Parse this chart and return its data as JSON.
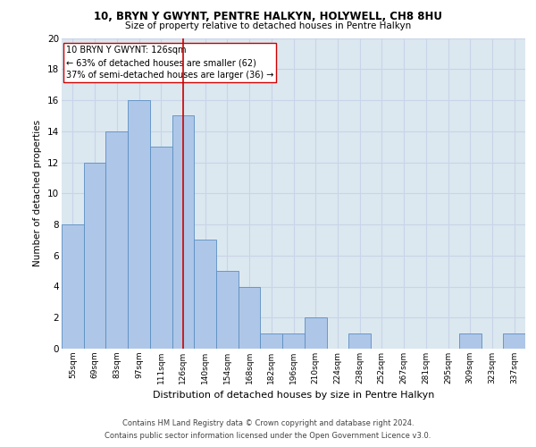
{
  "title1": "10, BRYN Y GWYNT, PENTRE HALKYN, HOLYWELL, CH8 8HU",
  "title2": "Size of property relative to detached houses in Pentre Halkyn",
  "xlabel": "Distribution of detached houses by size in Pentre Halkyn",
  "ylabel": "Number of detached properties",
  "categories": [
    "55sqm",
    "69sqm",
    "83sqm",
    "97sqm",
    "111sqm",
    "126sqm",
    "140sqm",
    "154sqm",
    "168sqm",
    "182sqm",
    "196sqm",
    "210sqm",
    "224sqm",
    "238sqm",
    "252sqm",
    "267sqm",
    "281sqm",
    "295sqm",
    "309sqm",
    "323sqm",
    "337sqm"
  ],
  "values": [
    8,
    12,
    14,
    16,
    13,
    15,
    7,
    5,
    4,
    1,
    1,
    2,
    0,
    1,
    0,
    0,
    0,
    0,
    1,
    0,
    1
  ],
  "bar_color": "#aec6e8",
  "bar_edge_color": "#5a8fc2",
  "highlight_index": 5,
  "highlight_line_color": "#cc0000",
  "annotation_text": "10 BRYN Y GWYNT: 126sqm\n← 63% of detached houses are smaller (62)\n37% of semi-detached houses are larger (36) →",
  "annotation_box_color": "#ffffff",
  "annotation_box_edge": "#cc0000",
  "ylim": [
    0,
    20
  ],
  "yticks": [
    0,
    2,
    4,
    6,
    8,
    10,
    12,
    14,
    16,
    18,
    20
  ],
  "grid_color": "#c8d4e8",
  "background_color": "#dce8f0",
  "footer1": "Contains HM Land Registry data © Crown copyright and database right 2024.",
  "footer2": "Contains public sector information licensed under the Open Government Licence v3.0."
}
